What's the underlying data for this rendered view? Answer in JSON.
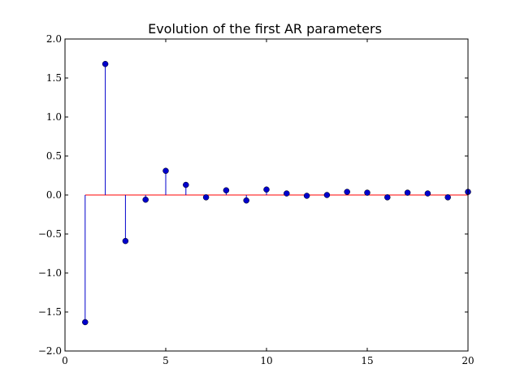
{
  "chart_data": {
    "type": "stem",
    "title": "Evolution of the first AR parameters",
    "xlabel": "",
    "ylabel": "",
    "xlim": [
      0,
      20
    ],
    "ylim": [
      -2.0,
      2.0
    ],
    "xticks": [
      0,
      5,
      10,
      15,
      20
    ],
    "yticks": [
      -2.0,
      -1.5,
      -1.0,
      -0.5,
      0.0,
      0.5,
      1.0,
      1.5,
      2.0
    ],
    "xtick_labels": [
      "0",
      "5",
      "10",
      "15",
      "20"
    ],
    "ytick_labels": [
      "−2.0",
      "−1.5",
      "−1.0",
      "−0.5",
      "0.0",
      "0.5",
      "1.0",
      "1.5",
      "2.0"
    ],
    "grid": false,
    "baseline": 0,
    "colors": {
      "stem": "#0000cc",
      "marker": "#0000cc",
      "baseline": "#ff0000"
    },
    "x": [
      1,
      2,
      3,
      4,
      5,
      6,
      7,
      8,
      9,
      10,
      11,
      12,
      13,
      14,
      15,
      16,
      17,
      18,
      19,
      20
    ],
    "values": [
      -1.63,
      1.68,
      -0.59,
      -0.06,
      0.31,
      0.13,
      -0.03,
      0.06,
      -0.07,
      0.07,
      0.02,
      -0.01,
      0.0,
      0.04,
      0.03,
      -0.03,
      0.03,
      0.02,
      -0.03,
      0.04
    ]
  }
}
